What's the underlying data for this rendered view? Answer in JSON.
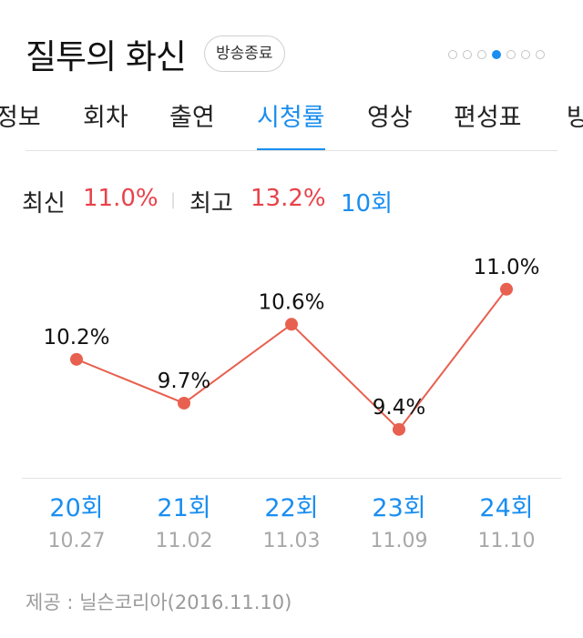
{
  "header": {
    "title": "질투의 화신",
    "status_badge": "방송종료",
    "pager": {
      "count": 7,
      "active_index": 4
    }
  },
  "tabs": [
    {
      "label": "정보"
    },
    {
      "label": "회차"
    },
    {
      "label": "출연"
    },
    {
      "label": "시청률",
      "active": true
    },
    {
      "label": "영상"
    },
    {
      "label": "편성표"
    },
    {
      "label": "방"
    }
  ],
  "summary": {
    "latest_label": "최신",
    "latest_value": "11.0%",
    "best_label": "최고",
    "best_value": "13.2%",
    "best_episode": "10회"
  },
  "chart_data": {
    "type": "line",
    "x": [
      "20회",
      "21회",
      "22회",
      "23회",
      "24회"
    ],
    "dates": [
      "10.27",
      "11.02",
      "11.03",
      "11.09",
      "11.10"
    ],
    "values": [
      10.2,
      9.7,
      10.6,
      9.4,
      11.0
    ],
    "value_labels": [
      "10.2%",
      "9.7%",
      "10.6%",
      "9.4%",
      "11.0%"
    ],
    "ylim": [
      8.9,
      11.6
    ],
    "grid": false,
    "line_color": "#e8604f",
    "point_color": "#e8604f"
  },
  "footer": {
    "source": "제공 : 닐슨코리아(2016.11.10)"
  },
  "colors": {
    "accent": "#1a8ef0",
    "highlight": "#e8424a"
  }
}
